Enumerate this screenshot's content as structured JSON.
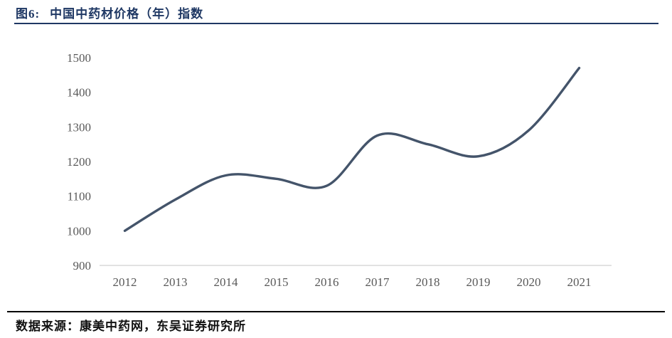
{
  "page": {
    "background": "#ffffff"
  },
  "header": {
    "figure_label": "图6:",
    "title": "中国中药材价格（年）指数",
    "accent_color": "#1f3864"
  },
  "chart_data": {
    "type": "line",
    "title": "中国中药材价格（年）指数",
    "categories": [
      "2012",
      "2013",
      "2014",
      "2015",
      "2016",
      "2017",
      "2018",
      "2019",
      "2020",
      "2021"
    ],
    "series": [
      {
        "name": "中国中药材价格（年）指数",
        "values": [
          1000,
          1090,
          1160,
          1150,
          1130,
          1275,
          1250,
          1215,
          1290,
          1470
        ]
      }
    ],
    "xlabel": "",
    "ylabel": "",
    "ylim": [
      900,
      1500
    ],
    "y_ticks": [
      900,
      1000,
      1100,
      1200,
      1300,
      1400,
      1500
    ],
    "grid": false,
    "legend_position": "none",
    "smooth": true,
    "line_color": "#44546a",
    "axis_line_color": "#d9d9d9",
    "tick_label_color": "#595959"
  },
  "footer": {
    "source_label": "数据来源：",
    "source_text": "康美中药网，东吴证券研究所"
  }
}
